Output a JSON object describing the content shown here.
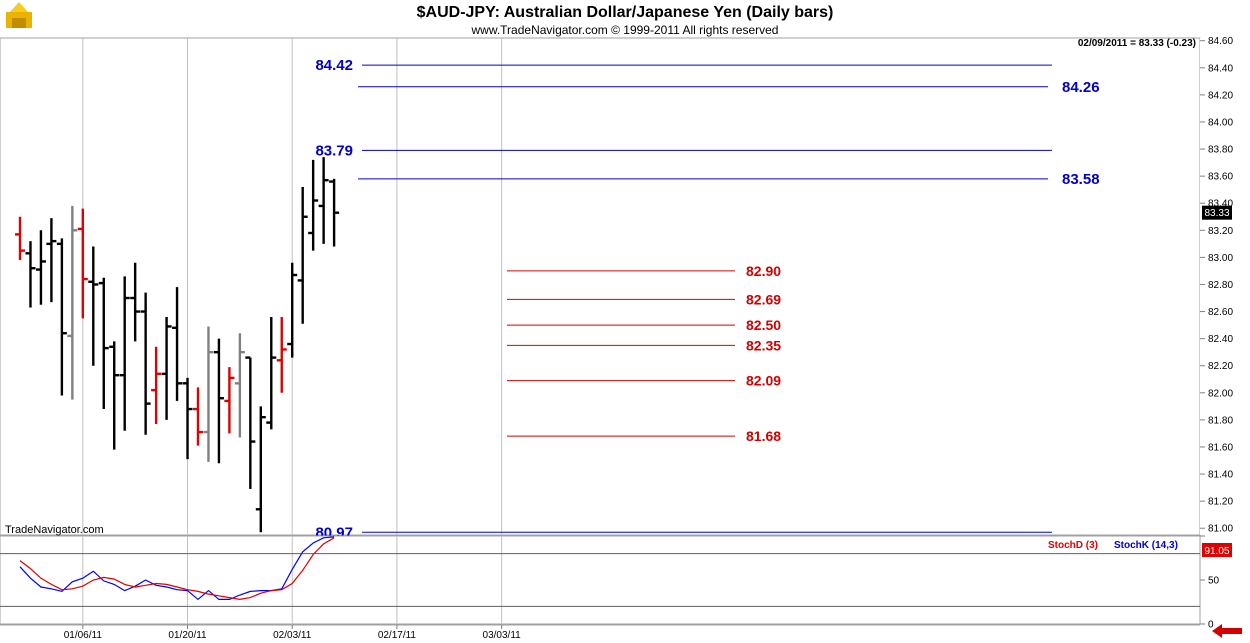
{
  "header": {
    "title": "$AUD-JPY:  Australian Dollar/Japanese Yen  (Daily bars)",
    "subtitle": "www.TradeNavigator.com © 1999-2011 All rights reserved",
    "last_quote": "02/09/2011 = 83.33 (-0.23)",
    "watermark": "TradeNavigator.com",
    "current_price_tag": "83.33"
  },
  "colors": {
    "up": "#000000",
    "down": "#e00000",
    "neutral": "#808080",
    "blue_level": "#0000cc",
    "red_level": "#d40000",
    "stoch_k": "#0000ff",
    "stoch_d": "#e00000",
    "nav_arrow": "#d40000"
  },
  "chart_data": [
    {
      "type": "ohlc",
      "name": "price",
      "y_axis_ticks": [
        "84.60",
        "84.40",
        "84.20",
        "84.00",
        "83.80",
        "83.60",
        "83.40",
        "83.20",
        "83.00",
        "82.80",
        "82.60",
        "82.40",
        "82.20",
        "82.00",
        "81.80",
        "81.60",
        "81.40",
        "81.20",
        "81.00"
      ],
      "ylim": [
        80.95,
        84.62
      ],
      "x_tick_labels": [
        "01/06/11",
        "01/20/11",
        "02/03/11",
        "02/17/11",
        "03/03/11"
      ],
      "x_ticks_bar_index": [
        6,
        16,
        26,
        36,
        46
      ],
      "bars": [
        {
          "o": 83.17,
          "h": 83.3,
          "l": 82.98,
          "c": 83.05,
          "color": "down"
        },
        {
          "o": 83.03,
          "h": 83.12,
          "l": 82.63,
          "c": 82.92,
          "color": "up"
        },
        {
          "o": 82.91,
          "h": 83.2,
          "l": 82.65,
          "c": 82.97,
          "color": "up"
        },
        {
          "o": 83.1,
          "h": 83.29,
          "l": 82.67,
          "c": 83.12,
          "color": "up"
        },
        {
          "o": 83.1,
          "h": 83.14,
          "l": 81.98,
          "c": 82.44,
          "color": "up"
        },
        {
          "o": 82.42,
          "h": 83.38,
          "l": 81.95,
          "c": 83.2,
          "color": "neutral"
        },
        {
          "o": 83.21,
          "h": 83.36,
          "l": 82.55,
          "c": 82.84,
          "color": "down"
        },
        {
          "o": 82.82,
          "h": 83.08,
          "l": 82.2,
          "c": 82.8,
          "color": "up"
        },
        {
          "o": 82.81,
          "h": 82.85,
          "l": 81.88,
          "c": 82.33,
          "color": "up"
        },
        {
          "o": 82.34,
          "h": 82.38,
          "l": 81.58,
          "c": 82.13,
          "color": "up"
        },
        {
          "o": 82.13,
          "h": 82.86,
          "l": 81.72,
          "c": 82.7,
          "color": "up"
        },
        {
          "o": 82.7,
          "h": 82.96,
          "l": 82.38,
          "c": 82.6,
          "color": "up"
        },
        {
          "o": 82.6,
          "h": 82.74,
          "l": 81.69,
          "c": 81.92,
          "color": "up"
        },
        {
          "o": 82.02,
          "h": 82.34,
          "l": 81.77,
          "c": 82.14,
          "color": "down"
        },
        {
          "o": 82.14,
          "h": 82.56,
          "l": 81.8,
          "c": 82.49,
          "color": "up"
        },
        {
          "o": 82.48,
          "h": 82.78,
          "l": 81.94,
          "c": 82.07,
          "color": "up"
        },
        {
          "o": 82.07,
          "h": 82.11,
          "l": 81.51,
          "c": 81.88,
          "color": "up"
        },
        {
          "o": 81.88,
          "h": 82.04,
          "l": 81.61,
          "c": 81.71,
          "color": "down"
        },
        {
          "o": 81.71,
          "h": 82.49,
          "l": 81.49,
          "c": 82.3,
          "color": "neutral"
        },
        {
          "o": 82.3,
          "h": 82.4,
          "l": 81.48,
          "c": 81.96,
          "color": "up"
        },
        {
          "o": 81.94,
          "h": 82.19,
          "l": 81.7,
          "c": 82.11,
          "color": "down"
        },
        {
          "o": 82.07,
          "h": 82.44,
          "l": 81.67,
          "c": 82.3,
          "color": "neutral"
        },
        {
          "o": 82.26,
          "h": 82.26,
          "l": 81.29,
          "c": 81.64,
          "color": "up"
        },
        {
          "o": 81.14,
          "h": 81.9,
          "l": 80.97,
          "c": 81.82,
          "color": "up"
        },
        {
          "o": 81.78,
          "h": 82.56,
          "l": 81.73,
          "c": 82.26,
          "color": "up"
        },
        {
          "o": 82.24,
          "h": 82.56,
          "l": 82.0,
          "c": 82.32,
          "color": "down"
        },
        {
          "o": 82.36,
          "h": 82.96,
          "l": 82.26,
          "c": 82.87,
          "color": "up"
        },
        {
          "o": 82.83,
          "h": 83.52,
          "l": 82.51,
          "c": 83.3,
          "color": "up"
        },
        {
          "o": 83.18,
          "h": 83.72,
          "l": 83.05,
          "c": 83.42,
          "color": "up"
        },
        {
          "o": 83.38,
          "h": 83.74,
          "l": 83.1,
          "c": 83.57,
          "color": "up"
        },
        {
          "o": 83.56,
          "h": 83.58,
          "l": 83.08,
          "c": 83.33,
          "color": "up"
        }
      ],
      "levels_blue": [
        {
          "value": 84.42,
          "label": "84.42",
          "label_side": "left"
        },
        {
          "value": 84.26,
          "label": "84.26",
          "label_side": "right"
        },
        {
          "value": 83.79,
          "label": "83.79",
          "label_side": "left"
        },
        {
          "value": 83.58,
          "label": "83.58",
          "label_side": "right"
        },
        {
          "value": 80.97,
          "label": "80.97",
          "label_side": "left"
        }
      ],
      "levels_red": [
        {
          "value": 82.9,
          "label": "82.90"
        },
        {
          "value": 82.69,
          "label": "82.69"
        },
        {
          "value": 82.5,
          "label": "82.50"
        },
        {
          "value": 82.35,
          "label": "82.35"
        },
        {
          "value": 82.09,
          "label": "82.09"
        },
        {
          "value": 81.68,
          "label": "81.68"
        }
      ]
    },
    {
      "type": "line",
      "name": "stochastic",
      "ylim": [
        0,
        100
      ],
      "y_axis_ticks": [
        "100",
        "50",
        "0"
      ],
      "legend": [
        "StochD (3)",
        "StochK (14,3)"
      ],
      "current_value_tag": "91.05",
      "series": [
        {
          "name": "StochK (14,3)",
          "values": [
            65,
            52,
            42,
            40,
            37,
            48,
            52,
            60,
            49,
            45,
            38,
            43,
            50,
            44,
            42,
            39,
            38,
            28,
            38,
            28,
            28,
            33,
            37,
            38,
            38,
            40,
            62,
            82,
            92,
            98,
            99
          ]
        },
        {
          "name": "StochD (3)",
          "values": [
            72,
            63,
            52,
            45,
            39,
            40,
            43,
            50,
            53,
            51,
            45,
            42,
            44,
            46,
            45,
            42,
            39,
            37,
            34,
            32,
            30,
            28,
            30,
            35,
            38,
            39,
            46,
            61,
            79,
            91,
            98
          ]
        }
      ]
    }
  ]
}
